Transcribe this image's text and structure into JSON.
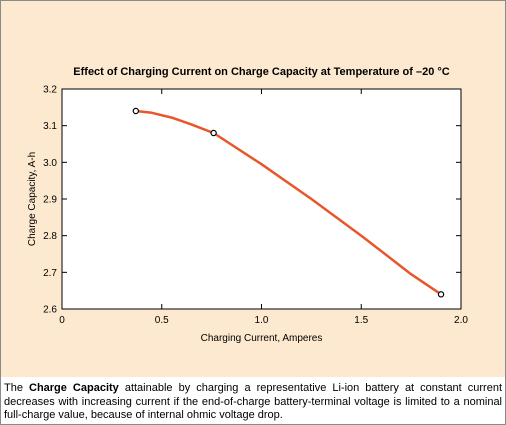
{
  "chart_data": {
    "type": "line",
    "title": "Effect of Charging Current on Charge Capacity at Temperature of –20 °C",
    "xlabel": "Charging Current, Amperes",
    "ylabel": "Charge Capacity, A-h",
    "xlim": [
      0,
      2.0
    ],
    "ylim": [
      2.6,
      3.2
    ],
    "xticks": [
      "0",
      "0.5",
      "1.0",
      "1.5",
      "2.0"
    ],
    "yticks": [
      "2.6",
      "2.7",
      "2.8",
      "2.9",
      "3.0",
      "3.1",
      "3.2"
    ],
    "grid": false,
    "series": [
      {
        "x": [
          0.37,
          0.76,
          1.9
        ],
        "y": [
          3.14,
          3.08,
          2.64
        ]
      }
    ],
    "curve": {
      "x": [
        0.37,
        0.45,
        0.55,
        0.65,
        0.76,
        1.0,
        1.25,
        1.5,
        1.75,
        1.9
      ],
      "y": [
        3.14,
        3.135,
        3.122,
        3.103,
        3.08,
        2.995,
        2.9,
        2.8,
        2.695,
        2.64
      ]
    }
  },
  "colors": {
    "panel_background": "#fde9cf",
    "line": "#e8572a",
    "axis": "#000000"
  },
  "caption": {
    "part1": "The ",
    "bold1": "Charge Capacity",
    "part2": " attainable by charging a representative Li-ion battery at constant current decreases with increasing current if the end-of-charge battery-terminal voltage is limited to a nominal full-charge value, because of internal ohmic voltage drop."
  }
}
